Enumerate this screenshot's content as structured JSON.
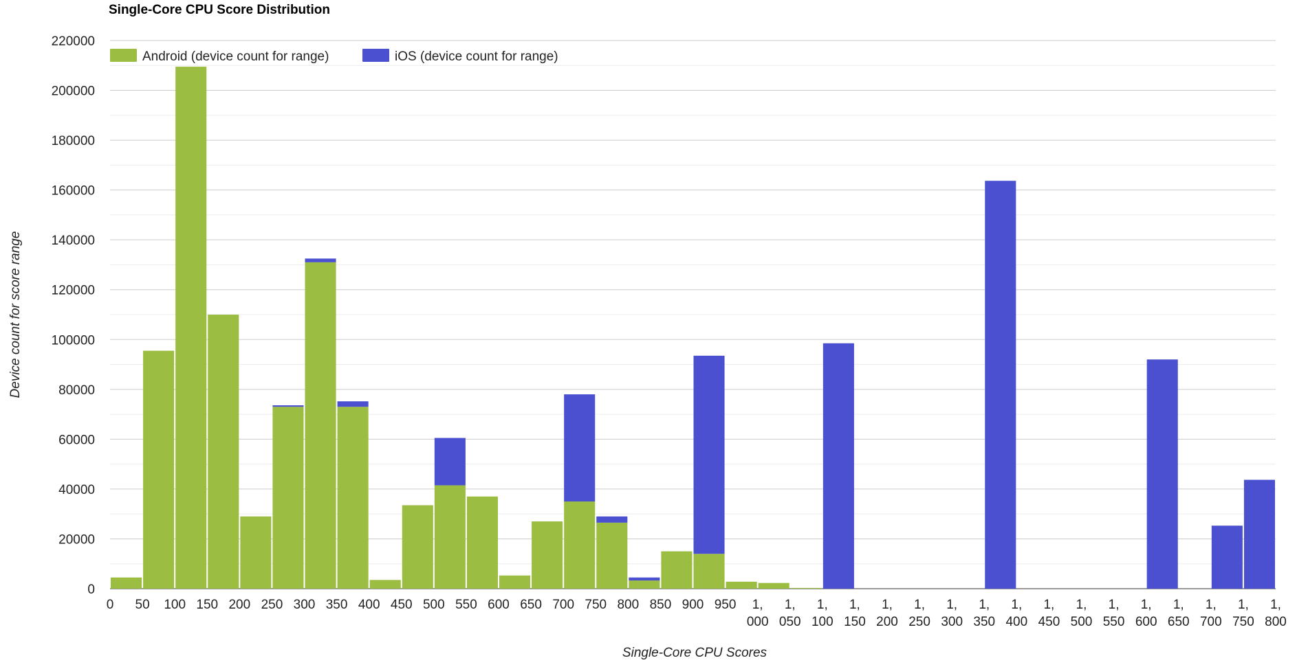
{
  "chart_data": {
    "type": "bar",
    "stacked": true,
    "title": "Single-Core CPU Score Distribution",
    "xlabel": "Single-Core CPU Scores",
    "ylabel": "Device count for score range",
    "ylim": [
      0,
      220000
    ],
    "y_ticks": [
      "0",
      "20000",
      "40000",
      "60000",
      "80000",
      "100000",
      "120000",
      "140000",
      "160000",
      "180000",
      "200000",
      "220000"
    ],
    "x_ticks": [
      "0",
      "50",
      "100",
      "150",
      "200",
      "250",
      "300",
      "350",
      "400",
      "450",
      "500",
      "550",
      "600",
      "650",
      "700",
      "750",
      "800",
      "850",
      "900",
      "950",
      "1,\n000",
      "1,\n050",
      "1,\n100",
      "1,\n150",
      "1,\n200",
      "1,\n250",
      "1,\n300",
      "1,\n350",
      "1,\n400",
      "1,\n450",
      "1,\n500",
      "1,\n550",
      "1,\n600",
      "1,\n650",
      "1,\n700",
      "1,\n750",
      "1,\n800"
    ],
    "grid": true,
    "legend_position": "top-left",
    "series": [
      {
        "name": "Android (device count for range)",
        "color": "#9bbd42",
        "values": [
          4500,
          95500,
          209500,
          110000,
          29000,
          73000,
          131000,
          73000,
          3500,
          33500,
          41500,
          37000,
          5300,
          27000,
          35000,
          26500,
          3300,
          15000,
          14000,
          2800,
          2300,
          300,
          0,
          0,
          0,
          0,
          0,
          0,
          0,
          0,
          0,
          0,
          0,
          0,
          0,
          0
        ]
      },
      {
        "name": "iOS (device count for range)",
        "color": "#4a50cf",
        "values": [
          0,
          0,
          0,
          0,
          0,
          600,
          1500,
          2200,
          0,
          0,
          19000,
          0,
          0,
          0,
          43000,
          2500,
          1200,
          0,
          79500,
          0,
          0,
          0,
          98500,
          0,
          0,
          0,
          0,
          163700,
          0,
          0,
          0,
          0,
          92000,
          0,
          25300,
          43700
        ]
      }
    ]
  }
}
